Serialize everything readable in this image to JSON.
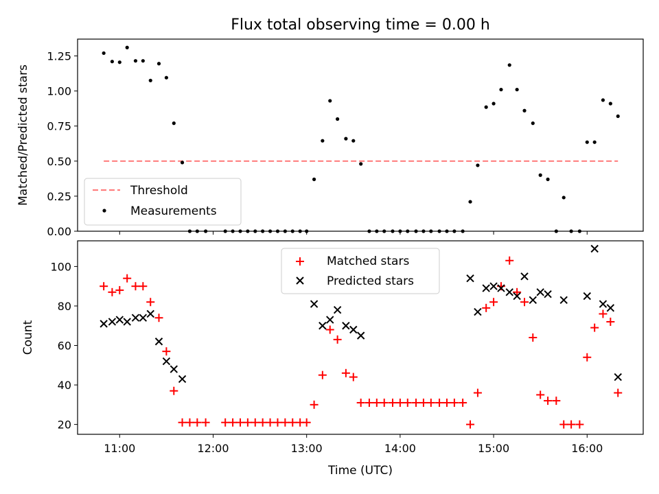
{
  "chart_data": [
    {
      "type": "scatter",
      "title": "Flux total observing time = 0.00 h",
      "xlabel": "",
      "ylabel": "Matched/Predicted stars",
      "xlim": [
        10.55,
        16.6
      ],
      "ylim": [
        0,
        1.37
      ],
      "yticks": [
        0,
        0.25,
        0.5,
        0.75,
        1.0,
        1.25
      ],
      "ytick_labels": [
        "0.00",
        "0.25",
        "0.50",
        "0.75",
        "1.00",
        "1.25"
      ],
      "threshold": {
        "name": "Threshold",
        "value": 0.5,
        "x_range": [
          10.83,
          16.33
        ],
        "color": "#ff7f7f"
      },
      "series": [
        {
          "name": "Measurements",
          "color": "#000000",
          "points": [
            [
              10.83,
              1.27
            ],
            [
              10.92,
              1.21
            ],
            [
              11.0,
              1.205
            ],
            [
              11.08,
              1.31
            ],
            [
              11.17,
              1.215
            ],
            [
              11.25,
              1.215
            ],
            [
              11.33,
              1.075
            ],
            [
              11.42,
              1.195
            ],
            [
              11.5,
              1.095
            ],
            [
              11.58,
              0.77
            ],
            [
              11.67,
              0.49
            ],
            [
              11.75,
              0
            ],
            [
              11.83,
              0
            ],
            [
              11.92,
              0
            ],
            [
              12.13,
              0
            ],
            [
              12.21,
              0
            ],
            [
              12.29,
              0
            ],
            [
              12.37,
              0
            ],
            [
              12.45,
              0
            ],
            [
              12.53,
              0
            ],
            [
              12.61,
              0
            ],
            [
              12.69,
              0
            ],
            [
              12.77,
              0
            ],
            [
              12.85,
              0
            ],
            [
              12.93,
              0
            ],
            [
              13.0,
              0
            ],
            [
              13.08,
              0.37
            ],
            [
              13.17,
              0.645
            ],
            [
              13.25,
              0.93
            ],
            [
              13.33,
              0.8
            ],
            [
              13.42,
              0.66
            ],
            [
              13.5,
              0.645
            ],
            [
              13.58,
              0.48
            ],
            [
              13.67,
              0
            ],
            [
              13.75,
              0
            ],
            [
              13.83,
              0
            ],
            [
              13.92,
              0
            ],
            [
              14.0,
              0
            ],
            [
              14.08,
              0
            ],
            [
              14.17,
              0
            ],
            [
              14.25,
              0
            ],
            [
              14.33,
              0
            ],
            [
              14.42,
              0
            ],
            [
              14.5,
              0
            ],
            [
              14.58,
              0
            ],
            [
              14.67,
              0
            ],
            [
              14.75,
              0.21
            ],
            [
              14.83,
              0.47
            ],
            [
              14.92,
              0.885
            ],
            [
              15.0,
              0.91
            ],
            [
              15.08,
              1.01
            ],
            [
              15.17,
              1.185
            ],
            [
              15.25,
              1.01
            ],
            [
              15.33,
              0.86
            ],
            [
              15.42,
              0.77
            ],
            [
              15.5,
              0.4
            ],
            [
              15.58,
              0.37
            ],
            [
              15.67,
              0
            ],
            [
              15.75,
              0.24
            ],
            [
              15.83,
              0
            ],
            [
              15.92,
              0
            ],
            [
              16.0,
              0.635
            ],
            [
              16.08,
              0.635
            ],
            [
              16.17,
              0.935
            ],
            [
              16.25,
              0.91
            ],
            [
              16.33,
              0.82
            ]
          ]
        }
      ],
      "legend": {
        "placement": "lower-left",
        "entries": [
          "Threshold",
          "Measurements"
        ]
      }
    },
    {
      "type": "scatter",
      "title": "",
      "xlabel": "Time (UTC)",
      "ylabel": "Count",
      "xlim": [
        10.55,
        16.6
      ],
      "ylim": [
        15,
        113
      ],
      "xticks": [
        11,
        12,
        13,
        14,
        15,
        16
      ],
      "xtick_labels": [
        "11:00",
        "12:00",
        "13:00",
        "14:00",
        "15:00",
        "16:00"
      ],
      "yticks": [
        20,
        40,
        60,
        80,
        100
      ],
      "ytick_labels": [
        "20",
        "40",
        "60",
        "80",
        "100"
      ],
      "series": [
        {
          "name": "Matched stars",
          "marker": "plus",
          "color": "#ff0000",
          "points": [
            [
              10.83,
              90
            ],
            [
              10.92,
              87
            ],
            [
              11.0,
              88
            ],
            [
              11.08,
              94
            ],
            [
              11.17,
              90
            ],
            [
              11.25,
              90
            ],
            [
              11.33,
              82
            ],
            [
              11.42,
              74
            ],
            [
              11.5,
              57
            ],
            [
              11.58,
              37
            ],
            [
              11.67,
              21
            ],
            [
              11.75,
              21
            ],
            [
              11.83,
              21
            ],
            [
              11.92,
              21
            ],
            [
              12.13,
              21
            ],
            [
              12.21,
              21
            ],
            [
              12.29,
              21
            ],
            [
              12.37,
              21
            ],
            [
              12.45,
              21
            ],
            [
              12.53,
              21
            ],
            [
              12.61,
              21
            ],
            [
              12.69,
              21
            ],
            [
              12.77,
              21
            ],
            [
              12.85,
              21
            ],
            [
              12.93,
              21
            ],
            [
              13.0,
              21
            ],
            [
              13.08,
              30
            ],
            [
              13.17,
              45
            ],
            [
              13.25,
              68
            ],
            [
              13.33,
              63
            ],
            [
              13.42,
              46
            ],
            [
              13.5,
              44
            ],
            [
              13.58,
              31
            ],
            [
              13.67,
              31
            ],
            [
              13.75,
              31
            ],
            [
              13.83,
              31
            ],
            [
              13.92,
              31
            ],
            [
              14.0,
              31
            ],
            [
              14.08,
              31
            ],
            [
              14.17,
              31
            ],
            [
              14.25,
              31
            ],
            [
              14.33,
              31
            ],
            [
              14.42,
              31
            ],
            [
              14.5,
              31
            ],
            [
              14.58,
              31
            ],
            [
              14.67,
              31
            ],
            [
              14.75,
              20
            ],
            [
              14.83,
              36
            ],
            [
              14.92,
              79
            ],
            [
              15.0,
              82
            ],
            [
              15.08,
              90
            ],
            [
              15.17,
              103
            ],
            [
              15.25,
              87
            ],
            [
              15.33,
              82
            ],
            [
              15.42,
              64
            ],
            [
              15.5,
              35
            ],
            [
              15.58,
              32
            ],
            [
              15.67,
              32
            ],
            [
              15.75,
              20
            ],
            [
              15.83,
              20
            ],
            [
              15.92,
              20
            ],
            [
              16.0,
              54
            ],
            [
              16.08,
              69
            ],
            [
              16.17,
              76
            ],
            [
              16.25,
              72
            ],
            [
              16.33,
              36
            ]
          ]
        },
        {
          "name": "Predicted stars",
          "marker": "x",
          "color": "#000000",
          "points": [
            [
              10.83,
              71
            ],
            [
              10.92,
              72
            ],
            [
              11.0,
              73
            ],
            [
              11.08,
              72
            ],
            [
              11.17,
              74
            ],
            [
              11.25,
              74
            ],
            [
              11.33,
              76
            ],
            [
              11.42,
              62
            ],
            [
              11.5,
              52
            ],
            [
              11.58,
              48
            ],
            [
              11.67,
              43
            ],
            [
              13.08,
              81
            ],
            [
              13.17,
              70
            ],
            [
              13.25,
              73
            ],
            [
              13.33,
              78
            ],
            [
              13.42,
              70
            ],
            [
              13.5,
              68
            ],
            [
              13.58,
              65
            ],
            [
              14.75,
              94
            ],
            [
              14.83,
              77
            ],
            [
              14.92,
              89
            ],
            [
              15.0,
              90
            ],
            [
              15.08,
              89
            ],
            [
              15.17,
              87
            ],
            [
              15.25,
              85
            ],
            [
              15.33,
              95
            ],
            [
              15.42,
              83
            ],
            [
              15.5,
              87
            ],
            [
              15.58,
              86
            ],
            [
              15.75,
              83
            ],
            [
              16.0,
              85
            ],
            [
              16.08,
              109
            ],
            [
              16.17,
              81
            ],
            [
              16.25,
              79
            ],
            [
              16.33,
              44
            ]
          ]
        }
      ],
      "legend": {
        "placement": "upper-center",
        "entries": [
          "Matched stars",
          "Predicted stars"
        ]
      }
    }
  ]
}
